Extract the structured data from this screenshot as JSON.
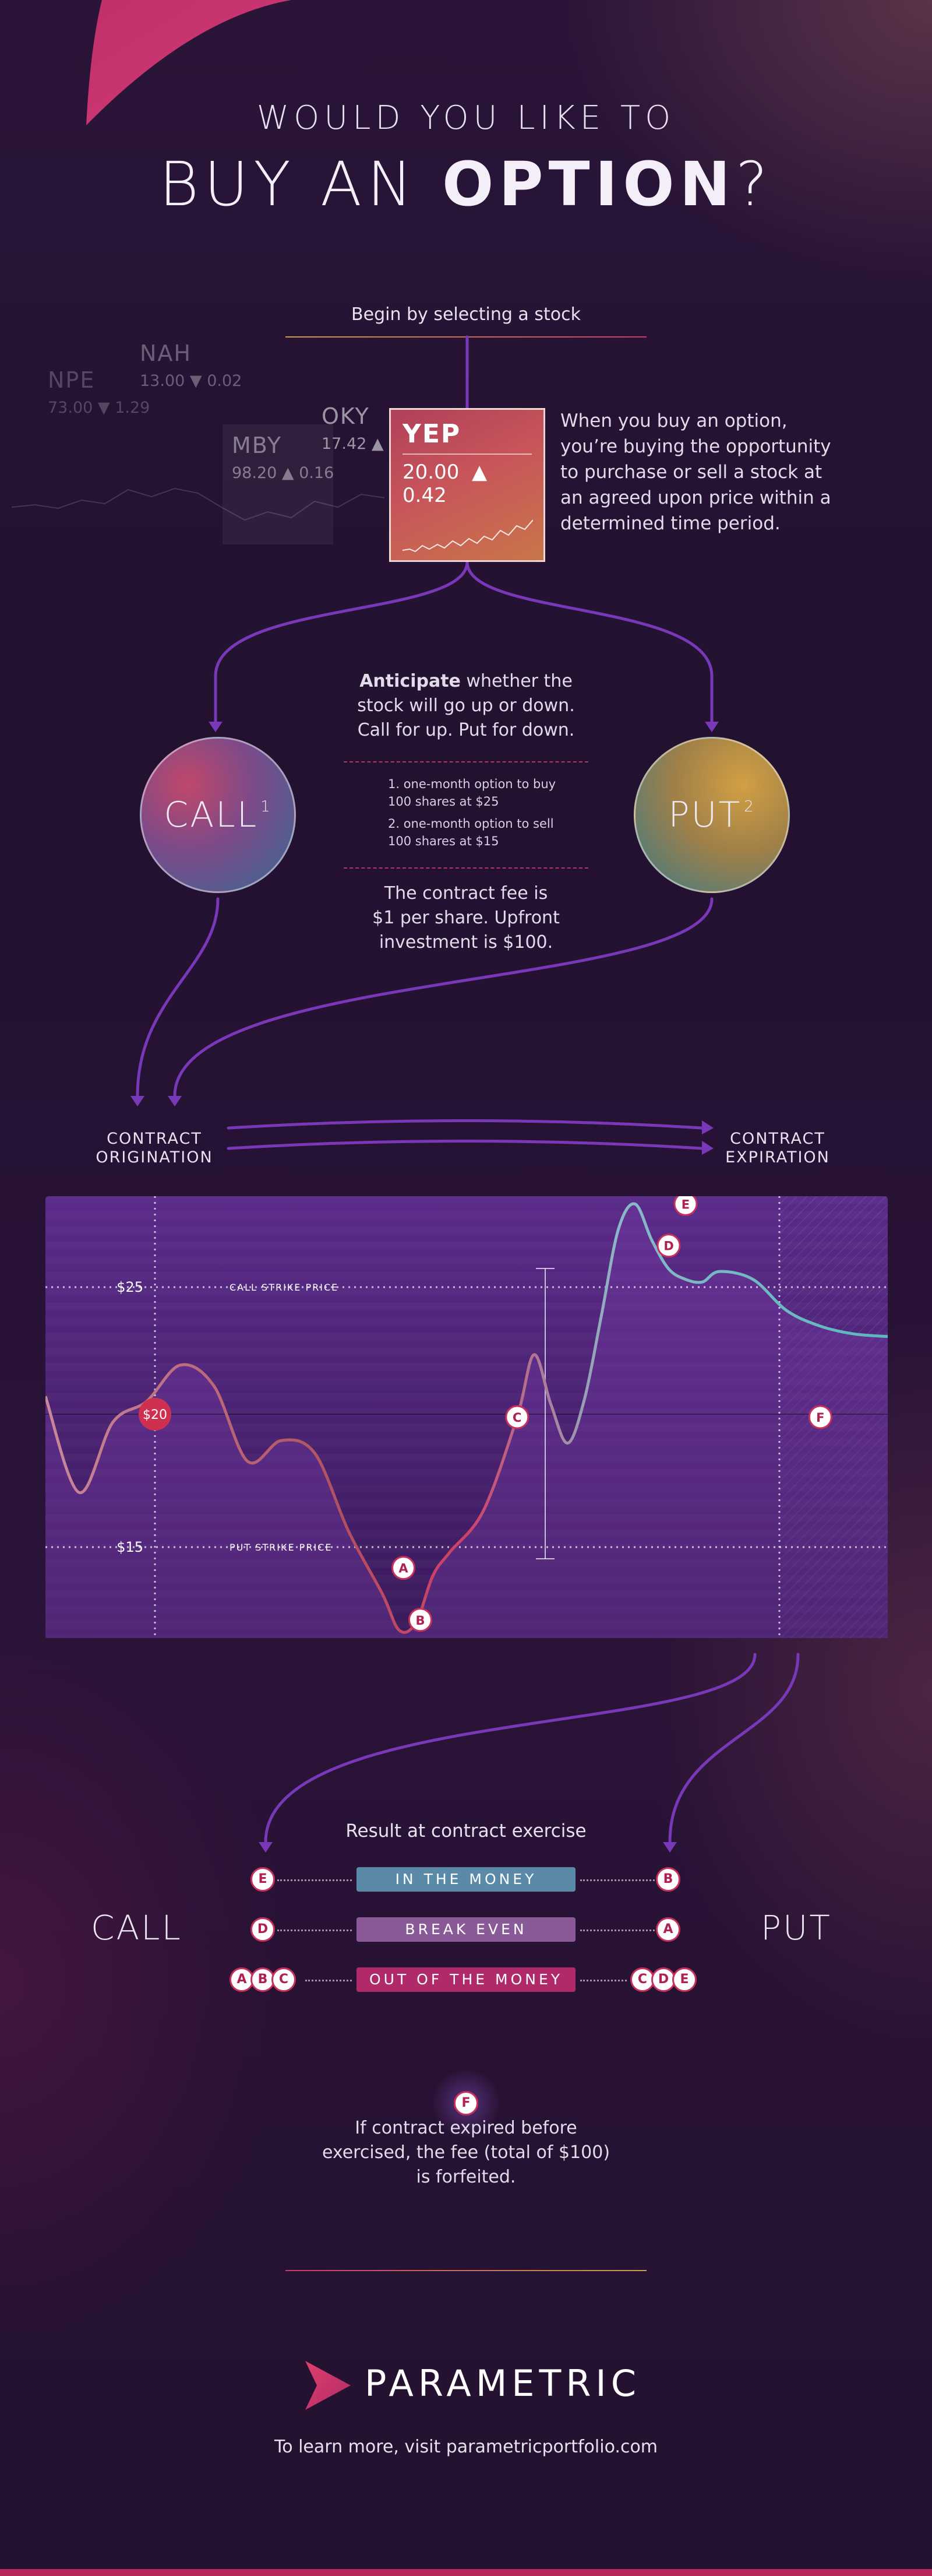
{
  "header": {
    "line1": "WOULD YOU LIKE TO",
    "line2_plain": "BUY AN ",
    "line2_bold": "OPTION",
    "line2_end": "?"
  },
  "intro": {
    "step_label": "Begin by selecting a stock"
  },
  "background_tickers": [
    {
      "symbol": "NPE",
      "price": "73.00 ▼ 1.29"
    },
    {
      "symbol": "NAH",
      "price": "13.00 ▼ 0.02"
    },
    {
      "symbol": "MBY",
      "price": "98.20 ▲ 0.16"
    },
    {
      "symbol": "OKY",
      "price": "17.42 ▲"
    }
  ],
  "selected_ticker": {
    "symbol": "YEP",
    "price": "20.00",
    "change": "▲ 0.42"
  },
  "explanation": "When you buy an option, you’re buying the opportunity to purchase or sell a stock at an agreed upon price within a determined time period.",
  "anticipate": {
    "bold": "Anticipate",
    "rest": " whether the stock will go up or down. Call for up. Put for down."
  },
  "options": {
    "call_label": "CALL",
    "call_note": "1",
    "put_label": "PUT",
    "put_note": "2",
    "notes": [
      "1. one-month option to buy 100 shares at $25",
      "2. one-month option to sell 100 shares at $15"
    ],
    "fee": "The contract fee is $1 per share. Upfront investment is $100."
  },
  "timeline": {
    "start": "CONTRACT ORIGINATION",
    "end": "CONTRACT EXPIRATION"
  },
  "chart_data": {
    "type": "line",
    "title": "",
    "y_ticks": [
      "$25",
      "$15"
    ],
    "reference_lines": [
      {
        "label": "CALL STRIKE PRICE",
        "value": 25
      },
      {
        "label": "PUT STRIKE PRICE",
        "value": 15
      }
    ],
    "start_marker": "$20",
    "ylim": [
      11.5,
      28.5
    ],
    "x": [
      0,
      4,
      8,
      12,
      16,
      20,
      24,
      28,
      32,
      36,
      40,
      42,
      44,
      46,
      48,
      52,
      56,
      58,
      60,
      62,
      64,
      66,
      68,
      70,
      72,
      74,
      76,
      78,
      80,
      84,
      88,
      92,
      96,
      100
    ],
    "y": [
      20.8,
      17.1,
      19.8,
      20.6,
      22.0,
      21.2,
      18.3,
      19.1,
      18.6,
      15.6,
      13.2,
      11.8,
      12.1,
      13.9,
      14.8,
      16.4,
      20.0,
      22.4,
      20.5,
      19.0,
      20.7,
      23.9,
      27.2,
      28.2,
      26.8,
      25.7,
      25.3,
      25.2,
      25.6,
      25.3,
      24.1,
      23.5,
      23.2,
      23.1
    ],
    "point_labels": [
      {
        "id": "A",
        "x": 42.5,
        "y": 14.2
      },
      {
        "id": "B",
        "x": 44.5,
        "y": 12.2
      },
      {
        "id": "C",
        "x": 56,
        "y": 20.0
      },
      {
        "id": "D",
        "x": 74,
        "y": 26.6
      },
      {
        "id": "E",
        "x": 76,
        "y": 28.2
      },
      {
        "id": "F",
        "x": 92,
        "y": 20.0
      }
    ],
    "grid": false
  },
  "results": {
    "title": "Result at contract exercise",
    "left_label": "CALL",
    "right_label": "PUT",
    "rows": [
      {
        "label": "IN THE MONEY",
        "color": "#5a8aa8",
        "call": [
          "E"
        ],
        "put": [
          "B"
        ]
      },
      {
        "label": "BREAK EVEN",
        "color": "#8a5a98",
        "call": [
          "D"
        ],
        "put": [
          "A"
        ]
      },
      {
        "label": "OUT OF THE MONEY",
        "color": "#b02a6a",
        "call": [
          "A",
          "B",
          "C"
        ],
        "put": [
          "C",
          "D",
          "E"
        ]
      }
    ],
    "expired_badge": "F",
    "expired_note": "If contract expired before exercised, the fee (total of $100) is forfeited."
  },
  "footer": {
    "brand": "PARAMETRIC",
    "link_text": "To learn more, visit parametricportfolio.com"
  },
  "colors": {
    "magenta": "#c8305a",
    "purple_line": "#7a3ab8",
    "gold": "#d4a048",
    "teal": "#5ab8c0"
  }
}
